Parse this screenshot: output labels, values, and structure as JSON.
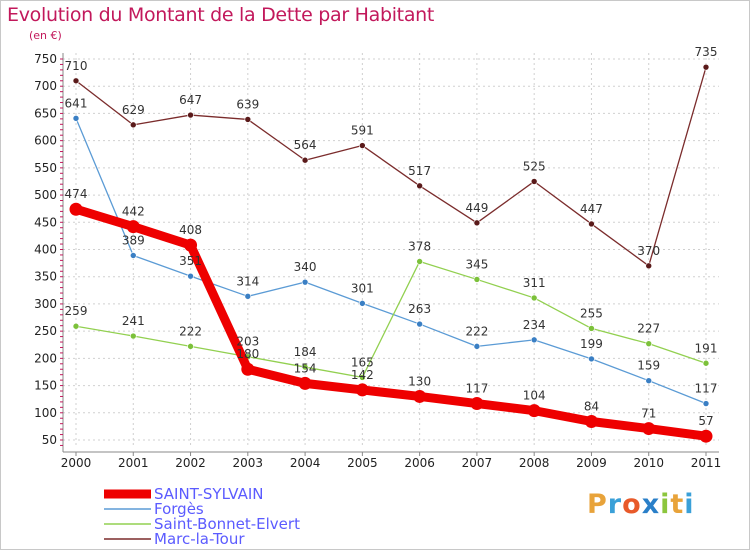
{
  "title": "Evolution du Montant de la Dette par Habitant",
  "subtitle": "(en €)",
  "logo": {
    "letters": [
      "P",
      "r",
      "o",
      "x",
      "i",
      "t",
      "i"
    ],
    "colors": [
      "#e8a33a",
      "#3aa0d8",
      "#e85a2a",
      "#2a7fc8",
      "#8cc63e",
      "#e8a33a",
      "#3aa0d8"
    ]
  },
  "chart_data": {
    "type": "line",
    "title": "Evolution du Montant de la Dette par Habitant",
    "ylabel": "(en €)",
    "xlabel": "",
    "ylim": [
      50,
      750
    ],
    "yticks": [
      50,
      100,
      150,
      200,
      250,
      300,
      350,
      400,
      450,
      500,
      550,
      600,
      650,
      700,
      750
    ],
    "categories": [
      "2000",
      "2001",
      "2002",
      "2003",
      "2004",
      "2005",
      "2006",
      "2007",
      "2008",
      "2009",
      "2010",
      "2011"
    ],
    "grid": true,
    "legend_position": "bottom-left",
    "series": [
      {
        "name": "SAINT-SYLVAIN",
        "color": "#ee0000",
        "marker": "#ee0000",
        "thick": true,
        "values": [
          474,
          442,
          408,
          180,
          154,
          142,
          130,
          117,
          104,
          84,
          71,
          57
        ]
      },
      {
        "name": "Forgès",
        "color": "#5b9bd5",
        "marker": "#3a7fc4",
        "thick": false,
        "values": [
          641,
          389,
          351,
          314,
          340,
          301,
          263,
          222,
          234,
          199,
          159,
          117
        ]
      },
      {
        "name": "Saint-Bonnet-Elvert",
        "color": "#92d050",
        "marker": "#7cc13a",
        "thick": false,
        "values": [
          259,
          241,
          222,
          203,
          184,
          165,
          378,
          345,
          311,
          255,
          227,
          191
        ]
      },
      {
        "name": "Marc-la-Tour",
        "color": "#7b2c2c",
        "marker": "#5a1a1a",
        "thick": false,
        "values": [
          710,
          629,
          647,
          639,
          564,
          591,
          517,
          449,
          525,
          447,
          370,
          735
        ]
      }
    ]
  }
}
